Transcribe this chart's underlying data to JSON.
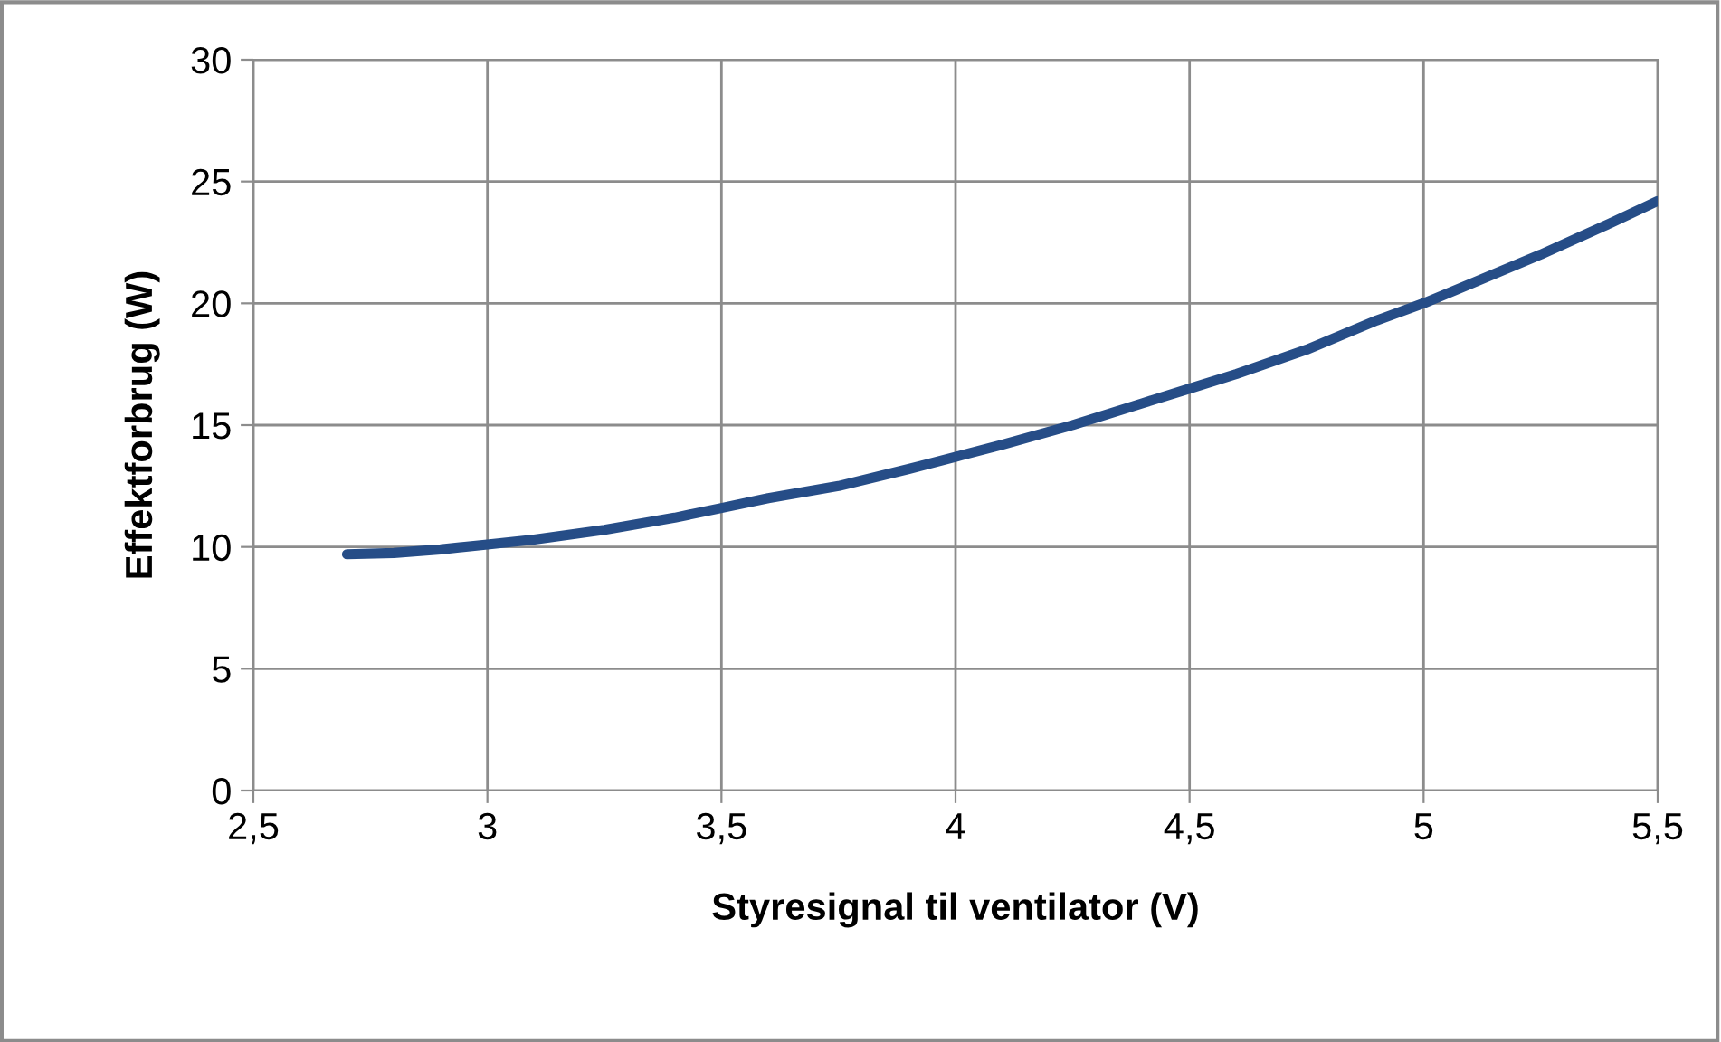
{
  "chart_data": {
    "type": "line",
    "xlabel": "Styresignal til ventilator (V)",
    "ylabel": "Effektforbrug (W)",
    "series": [
      {
        "color": "#264d87",
        "x": [
          2.7,
          2.8,
          2.9,
          3.0,
          3.1,
          3.25,
          3.4,
          3.5,
          3.6,
          3.75,
          3.9,
          4.0,
          4.1,
          4.25,
          4.4,
          4.5,
          4.6,
          4.75,
          4.9,
          5.0,
          5.1,
          5.25,
          5.4,
          5.5
        ],
        "values": [
          9.7,
          9.75,
          9.9,
          10.1,
          10.3,
          10.7,
          11.2,
          11.6,
          12.0,
          12.5,
          13.2,
          13.7,
          14.2,
          15.0,
          15.9,
          16.5,
          17.1,
          18.1,
          19.3,
          20.0,
          20.8,
          22.0,
          23.3,
          24.2
        ]
      }
    ],
    "xlim": [
      2.5,
      5.5
    ],
    "ylim": [
      0,
      30
    ],
    "xticks": [
      {
        "value": 2.5,
        "label": "2,5"
      },
      3,
      {
        "value": 3.5,
        "label": "3,5"
      },
      4,
      {
        "value": 4.5,
        "label": "4,5"
      },
      5,
      {
        "value": 5.5,
        "label": "5,5"
      }
    ],
    "yticks": [
      0,
      5,
      10,
      15,
      20,
      25,
      30
    ],
    "grid": true,
    "marker": "none",
    "line_style": "solid"
  }
}
